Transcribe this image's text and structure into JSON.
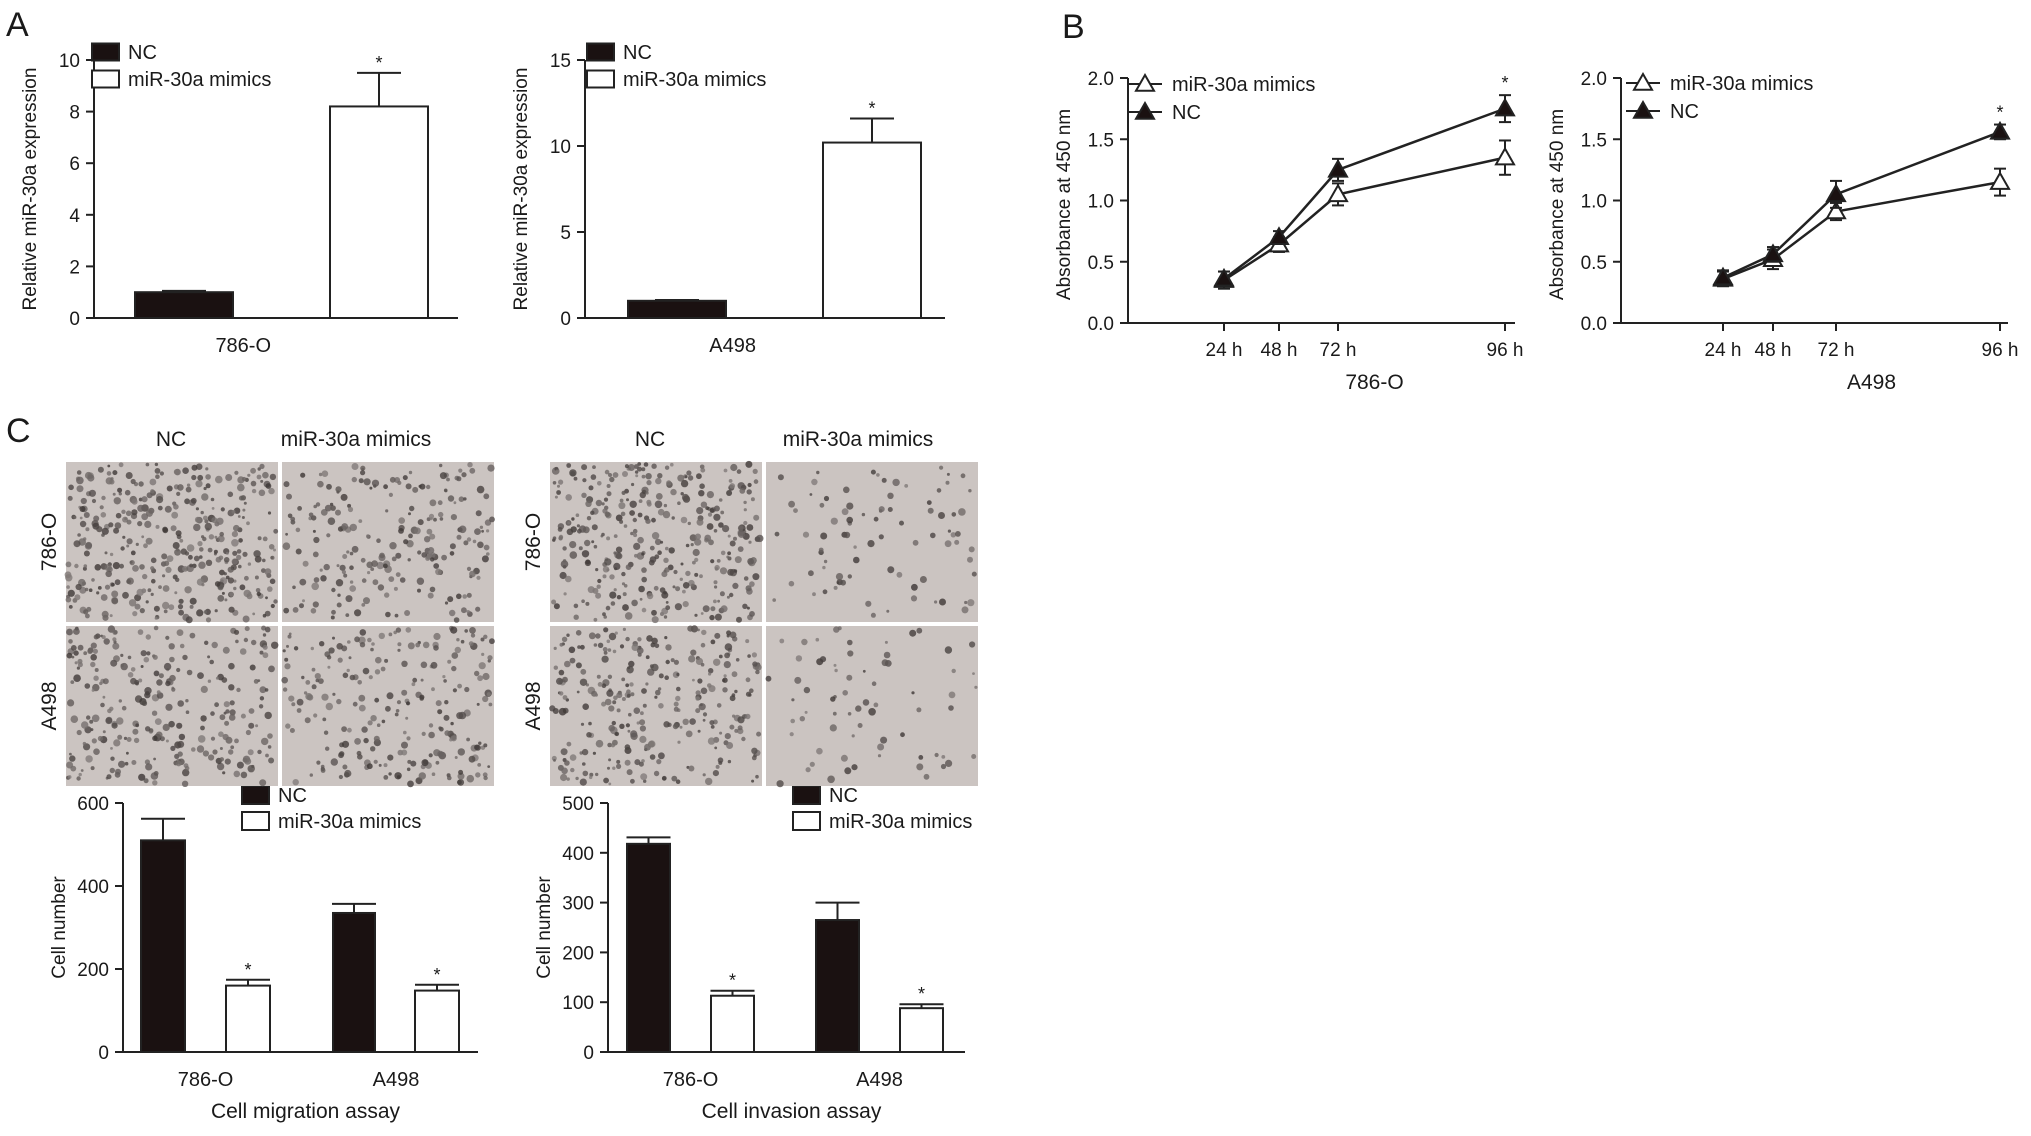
{
  "panels": [
    {
      "id": "A",
      "label": "A"
    },
    {
      "id": "B",
      "label": "B"
    },
    {
      "id": "C",
      "label": "C"
    }
  ],
  "legend_bar": [
    "NC",
    "miR-30a mimics"
  ],
  "legend_line": [
    "miR-30a mimics",
    "NC"
  ],
  "colors": {
    "nc": "#1a1111",
    "mimic": "#ffffff",
    "axis": "#222222"
  },
  "micrographs": {
    "columns": [
      "NC",
      "miR-30a mimics"
    ],
    "rows": [
      "786-O",
      "A498"
    ],
    "panels": [
      {
        "id": "migration",
        "density": [
          [
            0.55,
            0.32
          ],
          [
            0.4,
            0.34
          ]
        ]
      },
      {
        "id": "invasion",
        "density": [
          [
            0.5,
            0.12
          ],
          [
            0.42,
            0.1
          ]
        ]
      }
    ]
  },
  "chart_data": [
    {
      "id": "A-786O",
      "type": "bar",
      "categories": [
        "786-O"
      ],
      "series": [
        {
          "name": "NC",
          "values": [
            1.0
          ],
          "errors": [
            0.05
          ]
        },
        {
          "name": "miR-30a mimics",
          "values": [
            8.2
          ],
          "errors": [
            1.3
          ]
        }
      ],
      "ylabel": "Relative miR-30a expression",
      "ylim": [
        0,
        10
      ],
      "yticks": [
        "0",
        "2",
        "4",
        "6",
        "8",
        "10"
      ],
      "significance": [
        "*"
      ]
    },
    {
      "id": "A-A498",
      "type": "bar",
      "categories": [
        "A498"
      ],
      "series": [
        {
          "name": "NC",
          "values": [
            1.0
          ],
          "errors": [
            0.05
          ]
        },
        {
          "name": "miR-30a mimics",
          "values": [
            10.2
          ],
          "errors": [
            1.4
          ]
        }
      ],
      "ylabel": "Relative miR-30a expression",
      "ylim": [
        0,
        15
      ],
      "yticks": [
        "0",
        "5",
        "10",
        "15"
      ],
      "significance": [
        "*"
      ]
    },
    {
      "id": "B-786O",
      "type": "line",
      "x": [
        "24 h",
        "48 h",
        "72 h",
        "96 h"
      ],
      "series": [
        {
          "name": "miR-30a mimics",
          "values": [
            0.35,
            0.64,
            1.05,
            1.35
          ],
          "errors": [
            0.07,
            0.06,
            0.09,
            0.14
          ]
        },
        {
          "name": "NC",
          "values": [
            0.36,
            0.7,
            1.25,
            1.75
          ],
          "errors": [
            0.06,
            0.05,
            0.09,
            0.11
          ]
        }
      ],
      "xlabel": "786-O",
      "ylabel": "Absorbance at 450 nm",
      "ylim": [
        0,
        2.0
      ],
      "yticks": [
        "0.0",
        "0.5",
        "1.0",
        "1.5",
        "2.0"
      ],
      "significance": [
        "*"
      ]
    },
    {
      "id": "B-A498",
      "type": "line",
      "x": [
        "24 h",
        "48 h",
        "72 h",
        "96 h"
      ],
      "series": [
        {
          "name": "miR-30a mimics",
          "values": [
            0.36,
            0.52,
            0.91,
            1.15
          ],
          "errors": [
            0.06,
            0.08,
            0.07,
            0.11
          ]
        },
        {
          "name": "NC",
          "values": [
            0.37,
            0.56,
            1.05,
            1.56
          ],
          "errors": [
            0.06,
            0.06,
            0.11,
            0.06
          ]
        }
      ],
      "xlabel": "A498",
      "ylabel": "Absorbance at 450 nm",
      "ylim": [
        0,
        2.0
      ],
      "yticks": [
        "0.0",
        "0.5",
        "1.0",
        "1.5",
        "2.0"
      ],
      "significance": [
        "*"
      ]
    },
    {
      "id": "C-migration",
      "type": "bar",
      "categories": [
        "786-O",
        "A498"
      ],
      "series": [
        {
          "name": "NC",
          "values": [
            510,
            335
          ],
          "errors": [
            52,
            22
          ]
        },
        {
          "name": "miR-30a mimics",
          "values": [
            160,
            148
          ],
          "errors": [
            14,
            14
          ]
        }
      ],
      "xlabel": "Cell migration assay",
      "ylabel": "Cell number",
      "ylim": [
        0,
        600
      ],
      "yticks": [
        "0",
        "200",
        "400",
        "600"
      ],
      "significance": [
        "*",
        "*"
      ]
    },
    {
      "id": "C-invasion",
      "type": "bar",
      "categories": [
        "786-O",
        "A498"
      ],
      "series": [
        {
          "name": "NC",
          "values": [
            418,
            265
          ],
          "errors": [
            13,
            35
          ]
        },
        {
          "name": "miR-30a mimics",
          "values": [
            113,
            88
          ],
          "errors": [
            10,
            8
          ]
        }
      ],
      "xlabel": "Cell invasion assay",
      "ylabel": "Cell number",
      "ylim": [
        0,
        500
      ],
      "yticks": [
        "0",
        "100",
        "200",
        "300",
        "400",
        "500"
      ],
      "significance": [
        "*",
        "*"
      ]
    }
  ]
}
